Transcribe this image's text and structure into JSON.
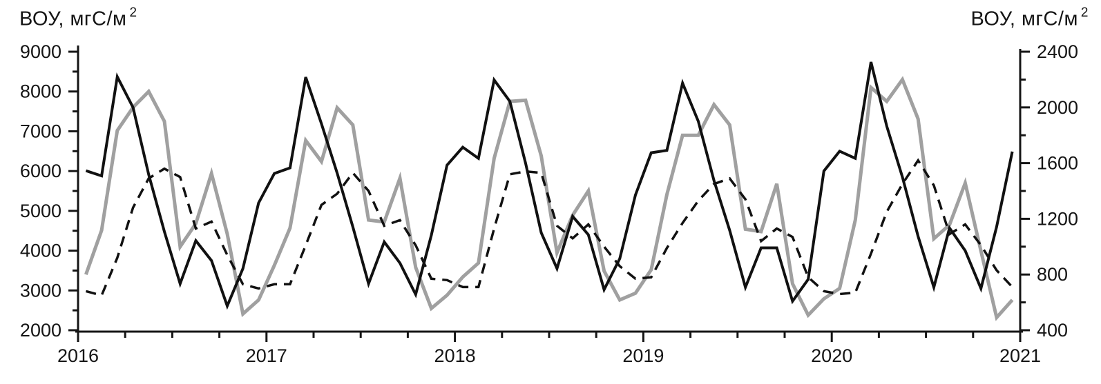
{
  "chart_data": {
    "type": "line",
    "left_axis_title": {
      "text": "ВОУ, мгС/м",
      "superscript": "2"
    },
    "right_axis_title": {
      "text": "ВОУ, мгС/м",
      "superscript": "2"
    },
    "x_axis": {
      "tick_labels": [
        "2016",
        "2017",
        "2018",
        "2019",
        "2020",
        "2021"
      ],
      "minor_divisions_per_year": 4
    },
    "left_axis": {
      "min": 2000,
      "max": 9000,
      "major_step": 1000,
      "minor_step": 500,
      "tick_labels": [
        "9000",
        "8000",
        "7000",
        "6000",
        "5000",
        "4000",
        "3000",
        "2000"
      ]
    },
    "right_axis": {
      "min": 400,
      "max": 2400,
      "major_step": 400,
      "minor_step": 200,
      "tick_labels": [
        "2400",
        "2000",
        "1600",
        "1200",
        "800",
        "400"
      ]
    },
    "x_start_year": 2016,
    "points_per_year": 12,
    "grid": "off",
    "legend": "none",
    "series": [
      {
        "id": "solid-black",
        "axis": "left",
        "color": "#111111",
        "stroke_width": 4,
        "dash": null,
        "values": [
          6010,
          5880,
          8370,
          7600,
          5910,
          4480,
          3170,
          4250,
          3750,
          2610,
          3550,
          5200,
          5940,
          6080,
          8360,
          7190,
          5950,
          4600,
          3170,
          4220,
          3690,
          2900,
          4390,
          6150,
          6600,
          6320,
          8290,
          7750,
          6200,
          4450,
          3550,
          4860,
          4400,
          3020,
          3800,
          5400,
          6460,
          6520,
          8210,
          7250,
          5760,
          4510,
          3080,
          4070,
          4070,
          2730,
          3280,
          6000,
          6500,
          6320,
          8740,
          7130,
          5850,
          4360,
          3080,
          4570,
          4000,
          3050,
          4600,
          6490
        ]
      },
      {
        "id": "solid-gray",
        "axis": "left",
        "color": "#a0a0a0",
        "stroke_width": 5,
        "dash": null,
        "values": [
          3400,
          4510,
          7020,
          7600,
          8000,
          7250,
          4100,
          4680,
          5940,
          4420,
          2410,
          2760,
          3630,
          4570,
          6770,
          6240,
          7590,
          7160,
          4770,
          4720,
          5820,
          3580,
          2550,
          2880,
          3340,
          3690,
          6320,
          7750,
          7780,
          6380,
          3950,
          4890,
          5500,
          3490,
          2760,
          2930,
          3520,
          5410,
          6900,
          6900,
          7670,
          7160,
          4540,
          4480,
          5680,
          3170,
          2380,
          2790,
          3050,
          4770,
          8100,
          7750,
          8300,
          7310,
          4300,
          4650,
          5700,
          3990,
          2320,
          2760
        ]
      },
      {
        "id": "dashed-black",
        "axis": "right",
        "color": "#111111",
        "stroke_width": 3.5,
        "dash": "15 10",
        "values": [
          680,
          650,
          920,
          1280,
          1490,
          1560,
          1500,
          1130,
          1180,
          940,
          730,
          700,
          730,
          730,
          1010,
          1300,
          1380,
          1530,
          1400,
          1150,
          1190,
          1010,
          770,
          760,
          710,
          710,
          1130,
          1520,
          1540,
          1530,
          1150,
          1060,
          1160,
          1000,
          860,
          770,
          780,
          990,
          1170,
          1330,
          1450,
          1490,
          1340,
          1040,
          1130,
          1070,
          780,
          680,
          660,
          670,
          950,
          1250,
          1450,
          1620,
          1440,
          1090,
          1160,
          1010,
          830,
          710
        ]
      }
    ]
  }
}
